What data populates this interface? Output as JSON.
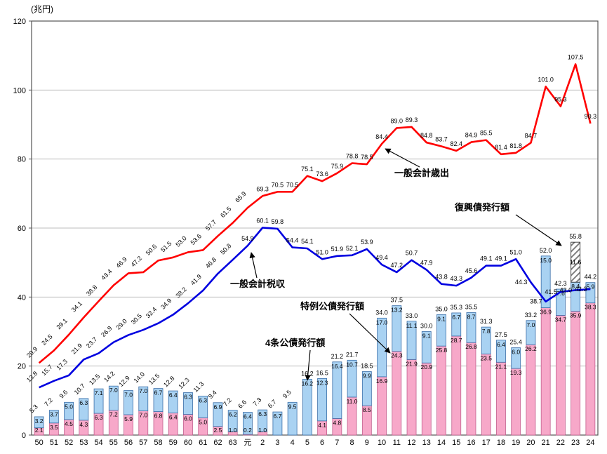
{
  "chart_data": {
    "type": "bar",
    "title": "",
    "ylabel": "(兆円)",
    "ylim": [
      0,
      120
    ],
    "yticks": [
      0,
      20,
      40,
      60,
      80,
      100,
      120
    ],
    "grid": true,
    "categories": [
      "50",
      "51",
      "52",
      "53",
      "54",
      "55",
      "56",
      "57",
      "58",
      "59",
      "60",
      "61",
      "62",
      "63",
      "元",
      "2",
      "3",
      "4",
      "5",
      "6",
      "7",
      "8",
      "9",
      "10",
      "11",
      "12",
      "13",
      "14",
      "15",
      "16",
      "17",
      "18",
      "19",
      "20",
      "21",
      "22",
      "23",
      "24"
    ],
    "series": [
      {
        "name": "一般会計歳出",
        "kind": "line",
        "color": "#ff0000",
        "values": [
          20.9,
          24.5,
          29.1,
          34.1,
          38.8,
          43.4,
          46.9,
          47.2,
          50.6,
          51.5,
          53.0,
          53.6,
          57.7,
          61.5,
          65.9,
          69.3,
          70.5,
          70.5,
          75.1,
          73.6,
          75.9,
          78.8,
          78.5,
          84.4,
          89.0,
          89.3,
          84.8,
          83.7,
          82.4,
          84.9,
          85.5,
          81.4,
          81.8,
          84.7,
          101.0,
          95.3,
          107.5,
          90.3
        ]
      },
      {
        "name": "一般会計税収",
        "kind": "line",
        "color": "#0000e0",
        "values": [
          13.8,
          15.7,
          17.3,
          21.9,
          23.7,
          26.9,
          29.0,
          30.5,
          32.4,
          34.9,
          38.2,
          41.9,
          46.8,
          50.8,
          54.9,
          60.1,
          59.8,
          54.4,
          54.1,
          51.0,
          51.9,
          52.1,
          53.9,
          49.4,
          47.2,
          50.7,
          47.9,
          43.8,
          43.3,
          45.6,
          49.1,
          49.1,
          51.0,
          44.3,
          38.7,
          41.5,
          42.0,
          42.3
        ]
      },
      {
        "name": "4条公債発行額",
        "kind": "bar",
        "color": "#a9d2f2",
        "stroke": "#3a6ea8",
        "values": [
          3.2,
          3.7,
          5.0,
          6.3,
          7.1,
          7.0,
          7.0,
          7.0,
          6.7,
          6.4,
          6.3,
          6.3,
          6.9,
          6.2,
          6.4,
          6.3,
          6.7,
          9.5,
          16.2,
          12.3,
          16.4,
          10.7,
          9.9,
          17.0,
          13.2,
          11.1,
          9.1,
          9.1,
          6.7,
          8.7,
          7.8,
          6.4,
          6.0,
          7.0,
          15.0,
          7.6,
          8.4,
          5.9
        ]
      },
      {
        "name": "特例公債発行額",
        "kind": "bar",
        "color": "#f7a8c9",
        "stroke": "#c2608e",
        "values": [
          2.1,
          3.5,
          4.5,
          4.3,
          6.3,
          7.2,
          5.9,
          7.0,
          6.8,
          6.4,
          6.0,
          5.0,
          2.5,
          1.0,
          0.2,
          1.0,
          0,
          0,
          0,
          4.1,
          4.8,
          11.0,
          8.5,
          16.9,
          24.3,
          21.9,
          20.9,
          25.8,
          28.7,
          26.8,
          23.5,
          21.1,
          19.3,
          26.2,
          36.9,
          34.7,
          35.9,
          38.3
        ]
      },
      {
        "name": "復興債発行額",
        "kind": "bar-hatched",
        "color": "hatch",
        "stroke": "#333333",
        "values": [
          0,
          0,
          0,
          0,
          0,
          0,
          0,
          0,
          0,
          0,
          0,
          0,
          0,
          0,
          0,
          0,
          0,
          0,
          0,
          0,
          0,
          0,
          0,
          0,
          0,
          0,
          0,
          0,
          0,
          0,
          0,
          0,
          0,
          0,
          0,
          0,
          11.6,
          0
        ]
      }
    ],
    "bar_total_labels": [
      5.3,
      7.2,
      9.6,
      10.7,
      13.5,
      14.2,
      12.9,
      14.0,
      13.5,
      12.8,
      12.3,
      11.3,
      9.4,
      7.2,
      6.6,
      7.3,
      6.7,
      9.5,
      16.2,
      16.5,
      21.2,
      21.7,
      18.5,
      34.0,
      37.5,
      33.0,
      30.0,
      35.0,
      35.3,
      35.5,
      31.3,
      27.5,
      25.4,
      33.2,
      52.0,
      42.3,
      55.8,
      44.2
    ],
    "annotations": {
      "expenditure": {
        "text": "一般会計歳出"
      },
      "tax": {
        "text": "一般会計税収"
      },
      "construction_bond": {
        "text": "4条公債発行額"
      },
      "special_bond": {
        "text": "特例公債発行額"
      },
      "reconstruction_bond": {
        "text": "復興債発行額"
      }
    }
  }
}
